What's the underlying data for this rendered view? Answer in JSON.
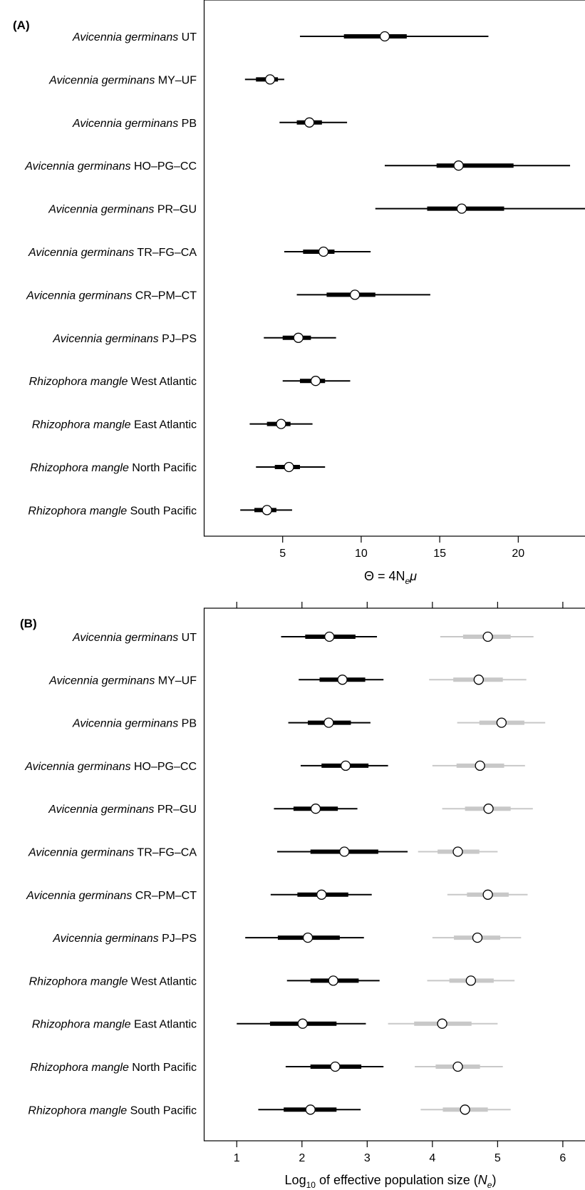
{
  "chart_data": [
    {
      "type": "interval",
      "panel_label": "(A)",
      "xlabel": "Θ = 4N",
      "xlabel_sub": "e",
      "xlabel_tail": "μ",
      "xlim": [
        0,
        24.5
      ],
      "xticks": [
        5,
        10,
        15,
        20
      ],
      "xtick_labels": [
        "5",
        "10",
        "15",
        "20"
      ],
      "rows": [
        {
          "genus": "Avicennia germinans",
          "pop": "UT"
        },
        {
          "genus": "Avicennia germinans",
          "pop": "MY–UF"
        },
        {
          "genus": "Avicennia germinans",
          "pop": "PB"
        },
        {
          "genus": "Avicennia germinans",
          "pop": "HO–PG–CC"
        },
        {
          "genus": "Avicennia germinans",
          "pop": "PR–GU"
        },
        {
          "genus": "Avicennia germinans",
          "pop": "TR–FG–CA"
        },
        {
          "genus": "Avicennia germinans",
          "pop": "CR–PM–CT"
        },
        {
          "genus": "Avicennia germinans",
          "pop": "PJ–PS"
        },
        {
          "genus": "Rhizophora mangle",
          "pop": "West Atlantic"
        },
        {
          "genus": "Rhizophora mangle",
          "pop": "East Atlantic"
        },
        {
          "genus": "Rhizophora mangle",
          "pop": "North Pacific"
        },
        {
          "genus": "Rhizophora mangle",
          "pop": "South Pacific"
        }
      ],
      "series": [
        {
          "color": "#000000",
          "points": [
            {
              "median": 11.5,
              "inner": [
                8.9,
                12.9
              ],
              "outer": [
                6.1,
                18.1
              ]
            },
            {
              "median": 4.2,
              "inner": [
                3.3,
                4.7
              ],
              "outer": [
                2.6,
                5.1
              ]
            },
            {
              "median": 6.7,
              "inner": [
                5.9,
                7.5
              ],
              "outer": [
                4.8,
                9.1
              ]
            },
            {
              "median": 16.2,
              "inner": [
                14.8,
                19.7
              ],
              "outer": [
                11.5,
                23.3
              ]
            },
            {
              "median": 16.4,
              "inner": [
                14.2,
                19.1
              ],
              "outer": [
                10.9,
                24.3
              ]
            },
            {
              "median": 7.6,
              "inner": [
                6.3,
                8.3
              ],
              "outer": [
                5.1,
                10.6
              ]
            },
            {
              "median": 9.6,
              "inner": [
                7.8,
                10.9
              ],
              "outer": [
                5.9,
                14.4
              ]
            },
            {
              "median": 6.0,
              "inner": [
                5.0,
                6.8
              ],
              "outer": [
                3.8,
                8.4
              ]
            },
            {
              "median": 7.1,
              "inner": [
                6.1,
                7.7
              ],
              "outer": [
                5.0,
                9.3
              ]
            },
            {
              "median": 4.9,
              "inner": [
                4.0,
                5.5
              ],
              "outer": [
                2.9,
                6.9
              ]
            },
            {
              "median": 5.4,
              "inner": [
                4.5,
                6.1
              ],
              "outer": [
                3.3,
                7.7
              ]
            },
            {
              "median": 4.0,
              "inner": [
                3.2,
                4.6
              ],
              "outer": [
                2.3,
                5.6
              ]
            }
          ]
        }
      ]
    },
    {
      "type": "interval",
      "panel_label": "(B)",
      "xlabel": "Log",
      "xlabel_sub1": "10",
      "xlabel_mid": " of effective population size (",
      "xlabel_var": "N",
      "xlabel_sub2": "e",
      "xlabel_tail": ")",
      "xlim": [
        0.5,
        6.4
      ],
      "xticks": [
        1,
        2,
        3,
        4,
        5,
        6
      ],
      "xtick_labels": [
        "1",
        "2",
        "3",
        "4",
        "5",
        "6"
      ],
      "rows": [
        {
          "genus": "Avicennia germinans",
          "pop": "UT"
        },
        {
          "genus": "Avicennia germinans",
          "pop": "MY–UF"
        },
        {
          "genus": "Avicennia germinans",
          "pop": "PB"
        },
        {
          "genus": "Avicennia germinans",
          "pop": "HO–PG–CC"
        },
        {
          "genus": "Avicennia germinans",
          "pop": "PR–GU"
        },
        {
          "genus": "Avicennia germinans",
          "pop": "TR–FG–CA"
        },
        {
          "genus": "Avicennia germinans",
          "pop": "CR–PM–CT"
        },
        {
          "genus": "Avicennia germinans",
          "pop": "PJ–PS"
        },
        {
          "genus": "Rhizophora mangle",
          "pop": "West Atlantic"
        },
        {
          "genus": "Rhizophora mangle",
          "pop": "East Atlantic"
        },
        {
          "genus": "Rhizophora mangle",
          "pop": "North Pacific"
        },
        {
          "genus": "Rhizophora mangle",
          "pop": "South Pacific"
        }
      ],
      "series": [
        {
          "color": "#000000",
          "points": [
            {
              "median": 2.42,
              "inner": [
                2.05,
                2.82
              ],
              "outer": [
                1.68,
                3.15
              ]
            },
            {
              "median": 2.62,
              "inner": [
                2.27,
                2.97
              ],
              "outer": [
                1.95,
                3.25
              ]
            },
            {
              "median": 2.41,
              "inner": [
                2.09,
                2.75
              ],
              "outer": [
                1.79,
                3.05
              ]
            },
            {
              "median": 2.67,
              "inner": [
                2.3,
                3.02
              ],
              "outer": [
                1.98,
                3.32
              ]
            },
            {
              "median": 2.21,
              "inner": [
                1.87,
                2.55
              ],
              "outer": [
                1.57,
                2.85
              ]
            },
            {
              "median": 2.65,
              "inner": [
                2.13,
                3.17
              ],
              "outer": [
                1.62,
                3.62
              ]
            },
            {
              "median": 2.3,
              "inner": [
                1.93,
                2.71
              ],
              "outer": [
                1.52,
                3.07
              ]
            },
            {
              "median": 2.09,
              "inner": [
                1.63,
                2.58
              ],
              "outer": [
                1.13,
                2.95
              ]
            },
            {
              "median": 2.48,
              "inner": [
                2.13,
                2.87
              ],
              "outer": [
                1.77,
                3.19
              ]
            },
            {
              "median": 2.01,
              "inner": [
                1.51,
                2.53
              ],
              "outer": [
                1.0,
                2.98
              ]
            },
            {
              "median": 2.51,
              "inner": [
                2.13,
                2.91
              ],
              "outer": [
                1.75,
                3.25
              ]
            },
            {
              "median": 2.13,
              "inner": [
                1.72,
                2.53
              ],
              "outer": [
                1.33,
                2.9
              ]
            }
          ]
        },
        {
          "color": "#c8c8c8",
          "points": [
            {
              "median": 4.85,
              "inner": [
                4.47,
                5.2
              ],
              "outer": [
                4.12,
                5.55
              ]
            },
            {
              "median": 4.71,
              "inner": [
                4.32,
                5.08
              ],
              "outer": [
                3.95,
                5.44
              ]
            },
            {
              "median": 5.06,
              "inner": [
                4.72,
                5.41
              ],
              "outer": [
                4.38,
                5.73
              ]
            },
            {
              "median": 4.73,
              "inner": [
                4.37,
                5.1
              ],
              "outer": [
                4.0,
                5.42
              ]
            },
            {
              "median": 4.86,
              "inner": [
                4.5,
                5.2
              ],
              "outer": [
                4.15,
                5.54
              ]
            },
            {
              "median": 4.39,
              "inner": [
                4.08,
                4.72
              ],
              "outer": [
                3.78,
                5.0
              ]
            },
            {
              "median": 4.85,
              "inner": [
                4.53,
                5.17
              ],
              "outer": [
                4.23,
                5.46
              ]
            },
            {
              "median": 4.69,
              "inner": [
                4.33,
                5.04
              ],
              "outer": [
                4.0,
                5.36
              ]
            },
            {
              "median": 4.59,
              "inner": [
                4.26,
                4.94
              ],
              "outer": [
                3.92,
                5.26
              ]
            },
            {
              "median": 4.15,
              "inner": [
                3.72,
                4.6
              ],
              "outer": [
                3.32,
                5.0
              ]
            },
            {
              "median": 4.39,
              "inner": [
                4.05,
                4.73
              ],
              "outer": [
                3.73,
                5.08
              ]
            },
            {
              "median": 4.5,
              "inner": [
                4.16,
                4.85
              ],
              "outer": [
                3.82,
                5.2
              ]
            }
          ]
        }
      ]
    }
  ]
}
